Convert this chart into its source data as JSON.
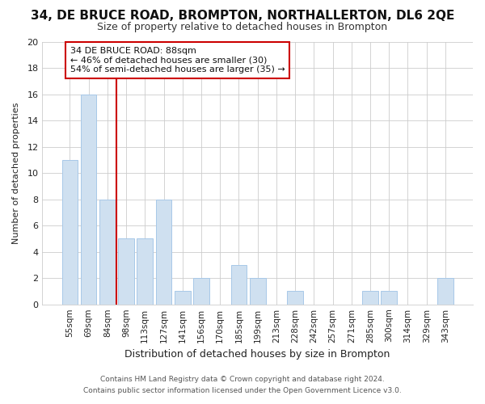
{
  "title": "34, DE BRUCE ROAD, BROMPTON, NORTHALLERTON, DL6 2QE",
  "subtitle": "Size of property relative to detached houses in Brompton",
  "xlabel": "Distribution of detached houses by size in Brompton",
  "ylabel": "Number of detached properties",
  "footnote1": "Contains HM Land Registry data © Crown copyright and database right 2024.",
  "footnote2": "Contains public sector information licensed under the Open Government Licence v3.0.",
  "bar_labels": [
    "55sqm",
    "69sqm",
    "84sqm",
    "98sqm",
    "113sqm",
    "127sqm",
    "141sqm",
    "156sqm",
    "170sqm",
    "185sqm",
    "199sqm",
    "213sqm",
    "228sqm",
    "242sqm",
    "257sqm",
    "271sqm",
    "285sqm",
    "300sqm",
    "314sqm",
    "329sqm",
    "343sqm"
  ],
  "bar_values": [
    11,
    16,
    8,
    5,
    5,
    8,
    1,
    2,
    0,
    3,
    2,
    0,
    1,
    0,
    0,
    0,
    1,
    1,
    0,
    0,
    2
  ],
  "bar_color": "#cfe0f0",
  "bar_edge_color": "#a8c8e8",
  "highlight_line_index": 2,
  "highlight_line_color": "#cc0000",
  "annotation_line1": "34 DE BRUCE ROAD: 88sqm",
  "annotation_line2": "← 46% of detached houses are smaller (30)",
  "annotation_line3": "54% of semi-detached houses are larger (35) →",
  "annotation_box_color": "#ffffff",
  "annotation_box_edge": "#cc0000",
  "ylim": [
    0,
    20
  ],
  "yticks": [
    0,
    2,
    4,
    6,
    8,
    10,
    12,
    14,
    16,
    18,
    20
  ],
  "grid_color": "#cccccc",
  "background_color": "#ffffff",
  "axes_background": "#ffffff",
  "title_fontsize": 11,
  "subtitle_fontsize": 9
}
